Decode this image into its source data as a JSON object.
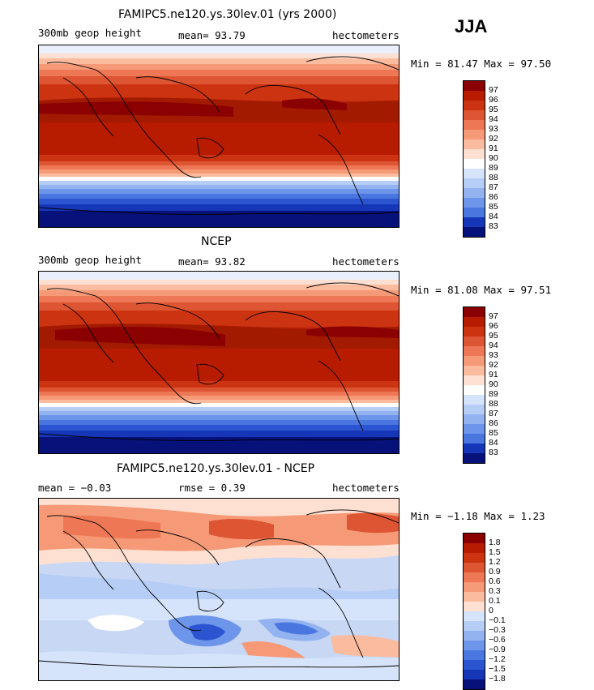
{
  "season": "JJA",
  "panels": [
    {
      "title": "FAMIPC5.ne120.ys.30lev.01 (yrs 2000)",
      "left": "300mb geop height",
      "middle": "mean=  93.79",
      "right": "hectometers",
      "minmax": "Min =  81.47 Max =  97.50",
      "colorbar_labels": [
        "97",
        "96",
        "95",
        "94",
        "93",
        "92",
        "91",
        "90",
        "89",
        "88",
        "87",
        "86",
        "85",
        "84",
        "83"
      ]
    },
    {
      "title": "NCEP",
      "left": "300mb geop height",
      "middle": "mean=  93.82",
      "right": "hectometers",
      "minmax": "Min =  81.08 Max =  97.51",
      "colorbar_labels": [
        "97",
        "96",
        "95",
        "94",
        "93",
        "92",
        "91",
        "90",
        "89",
        "88",
        "87",
        "86",
        "85",
        "84",
        "83"
      ]
    },
    {
      "title": "FAMIPC5.ne120.ys.30lev.01 - NCEP",
      "left": "mean =  −0.03",
      "middle": "rmse =   0.39",
      "right": "hectometers",
      "minmax": "Min =  −1.18 Max =   1.23",
      "colorbar_labels": [
        "1.8",
        "1.5",
        "1.2",
        "0.9",
        "0.6",
        "0.3",
        "0.1",
        "0",
        "−0.1",
        "−0.3",
        "−0.6",
        "−0.9",
        "−1.2",
        "−1.5",
        "−1.8"
      ]
    }
  ],
  "colors": {
    "warm": [
      "#8b0000",
      "#b71c00",
      "#cc3311",
      "#dd5533",
      "#ee7755",
      "#f59977",
      "#fbbb9f",
      "#fde0d2"
    ],
    "white": "#ffffff",
    "cool": [
      "#d6e4fb",
      "#b6cdf6",
      "#93b3f0",
      "#6d95ea",
      "#4a76e0",
      "#2b55d0",
      "#1636b8",
      "#0a1f9c",
      "#06117a"
    ]
  }
}
